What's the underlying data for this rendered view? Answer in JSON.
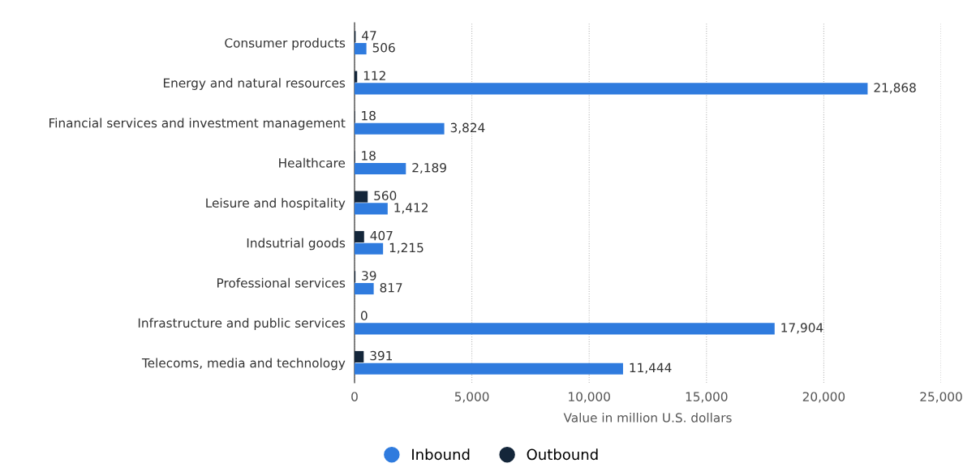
{
  "chart_data": {
    "type": "bar",
    "orientation": "horizontal",
    "categories": [
      "Consumer products",
      "Energy and natural resources",
      "Financial services and investment management",
      "Healthcare",
      "Leisure and hospitality",
      "Indsutrial goods",
      "Professional services",
      "Infrastructure and public services",
      "Telecoms, media and technology"
    ],
    "series": [
      {
        "name": "Inbound",
        "color": "#2f7bde",
        "values": [
          506,
          21868,
          3824,
          2189,
          1412,
          1215,
          817,
          17904,
          11444
        ],
        "value_labels": [
          "506",
          "21,868",
          "3,824",
          "2,189",
          "1,412",
          "1,215",
          "817",
          "17,904",
          "11,444"
        ]
      },
      {
        "name": "Outbound",
        "color": "#14263a",
        "values": [
          47,
          112,
          18,
          18,
          560,
          407,
          39,
          0,
          391
        ],
        "value_labels": [
          "47",
          "112",
          "18",
          "18",
          "560",
          "407",
          "39",
          "0",
          "391"
        ]
      }
    ],
    "xlabel": "Value in million U.S. dollars",
    "xlim": [
      0,
      25000
    ],
    "xticks": [
      {
        "value": 0,
        "label": "0"
      },
      {
        "value": 5000,
        "label": "5,000"
      },
      {
        "value": 10000,
        "label": "10,000"
      },
      {
        "value": 15000,
        "label": "15,000"
      },
      {
        "value": 20000,
        "label": "20,000"
      },
      {
        "value": 25000,
        "label": "25,000"
      }
    ],
    "grid": "x",
    "legend": "bottom"
  }
}
